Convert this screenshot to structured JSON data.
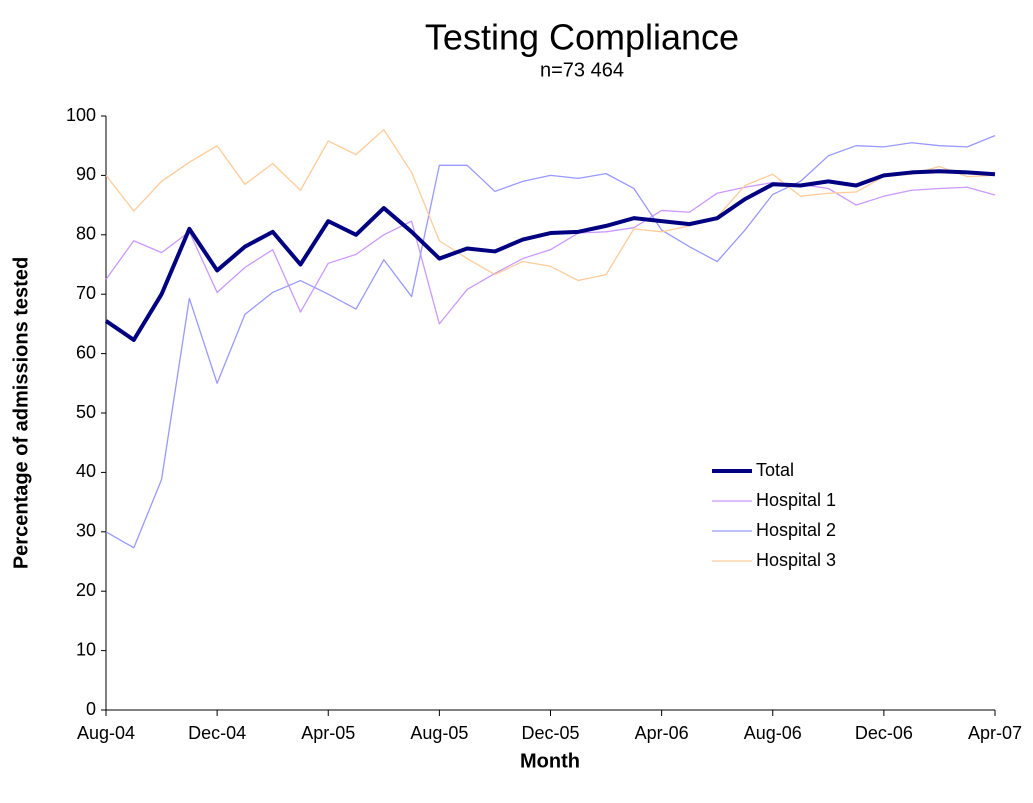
{
  "chart_data": {
    "type": "line",
    "title": "Testing Compliance",
    "subtitle": "n=73 464",
    "x_label": "Month",
    "y_label": "Percentage of admissions tested",
    "categories": [
      "Aug-04",
      null,
      null,
      null,
      "Dec-04",
      null,
      null,
      null,
      "Apr-05",
      null,
      null,
      null,
      "Aug-05",
      null,
      null,
      null,
      "Dec-05",
      null,
      null,
      null,
      "Apr-06",
      null,
      null,
      null,
      "Aug-06",
      null,
      null,
      null,
      "Dec-06",
      null,
      null,
      null,
      "Apr-07"
    ],
    "series": [
      {
        "name": "Total",
        "color": "#000080",
        "width": 4,
        "values": [
          65.5,
          62.3,
          70,
          81,
          74,
          78,
          80.5,
          75,
          82.3,
          80,
          84.5,
          80.5,
          76,
          77.7,
          77.2,
          79.2,
          80.3,
          80.5,
          81.5,
          82.8,
          82.3,
          81.8,
          82.8,
          86,
          88.5,
          88.3,
          89,
          88.3,
          90,
          90.5,
          90.7,
          90.5,
          90.2
        ]
      },
      {
        "name": "Hospital 1",
        "color": "#cc99ff",
        "width": 1.3,
        "values": [
          72.5,
          79,
          77,
          80.5,
          70.3,
          74.5,
          77.5,
          67,
          75.2,
          76.7,
          80,
          82.3,
          65,
          70.8,
          73.5,
          76,
          77.5,
          80.3,
          80.5,
          81.2,
          84.1,
          83.8,
          87,
          88,
          88.8,
          88.5,
          87.8,
          85,
          86.5,
          87.5,
          87.8,
          88,
          86.7
        ]
      },
      {
        "name": "Hospital 2",
        "color": "#9999ff",
        "width": 1.3,
        "values": [
          30,
          27.3,
          38.8,
          69.3,
          55,
          66.6,
          70.3,
          72.3,
          70,
          67.5,
          75.8,
          69.6,
          91.7,
          91.7,
          87.3,
          89,
          90,
          89.5,
          90.3,
          87.8,
          80.8,
          78,
          75.5,
          80.8,
          86.8,
          89,
          93.3,
          95,
          94.8,
          95.5,
          95,
          94.8,
          96.7
        ]
      },
      {
        "name": "Hospital 3",
        "color": "#ffcc99",
        "width": 1.3,
        "values": [
          90,
          84,
          89,
          92.2,
          95,
          88.5,
          92,
          87.5,
          95.8,
          93.5,
          97.7,
          90.5,
          79,
          76,
          73.3,
          75.5,
          74.7,
          72.3,
          73.3,
          81,
          80.5,
          81.5,
          83,
          88.3,
          90.2,
          86.5,
          87,
          87.2,
          89.8,
          90.2,
          91.5,
          89.8,
          90
        ]
      }
    ],
    "ylim": [
      0,
      100
    ],
    "yticks": [
      0,
      10,
      20,
      30,
      40,
      50,
      60,
      70,
      80,
      90,
      100
    ]
  }
}
